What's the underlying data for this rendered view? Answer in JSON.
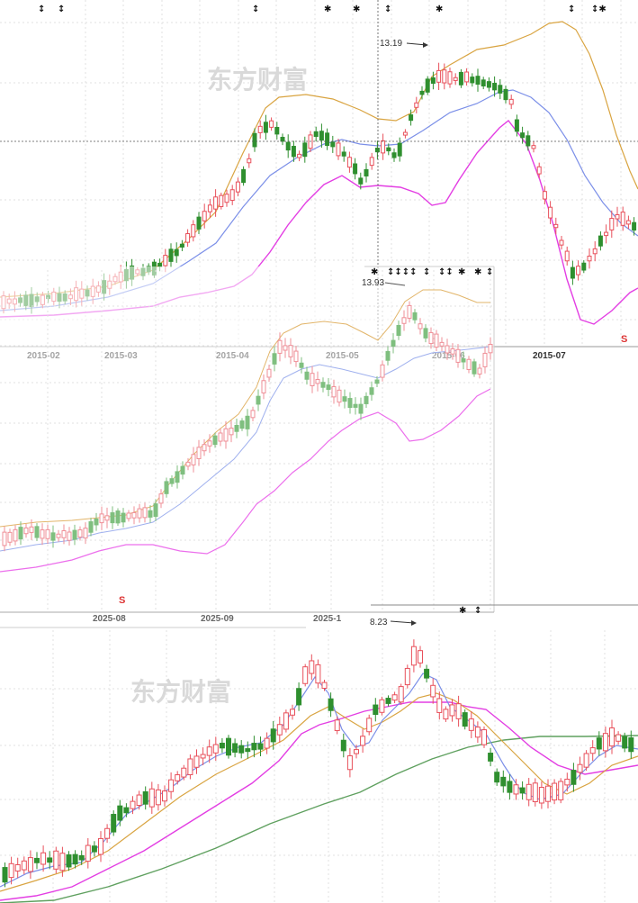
{
  "watermark": "东方财富",
  "chart_data": [
    {
      "type": "candlestick",
      "title": "",
      "x_ticks": [
        "2015-02",
        "2015-03",
        "2015-04",
        "2015-05",
        "2015-06",
        "2015-07"
      ],
      "max_label": "13.19",
      "lines": [
        "BOLL upper",
        "BOLL mid",
        "BOLL lower"
      ],
      "colors": {
        "up": "#e8505b",
        "down": "#2f8f2f",
        "upper": "#d9a441",
        "mid": "#7b8fe8",
        "lower": "#e33ee3"
      },
      "markers": [
        "↕",
        "↕",
        "↕",
        "✱",
        "✱",
        "↕",
        "✱",
        "↕",
        "↕✱"
      ]
    },
    {
      "type": "candlestick",
      "title": "",
      "x_ticks": [
        "2025-08",
        "2025-09",
        "2025-1"
      ],
      "max_label": "13.93",
      "markers": [
        "✱",
        "↕↕↕↕",
        "↕",
        "↕↕",
        "✱",
        "✱",
        "↕"
      ]
    },
    {
      "type": "candlestick",
      "title": "",
      "max_label": "8.23",
      "lines": [
        "MA short",
        "MA mid",
        "MA long",
        "MA 120"
      ],
      "markers": [
        "✱",
        "↕"
      ],
      "colors": {
        "up": "#e8505b",
        "down": "#2f8f2f",
        "ma1": "#7b8fe8",
        "ma2": "#d9a441",
        "ma3": "#e33ee3",
        "ma4": "#5fa05f"
      }
    }
  ]
}
